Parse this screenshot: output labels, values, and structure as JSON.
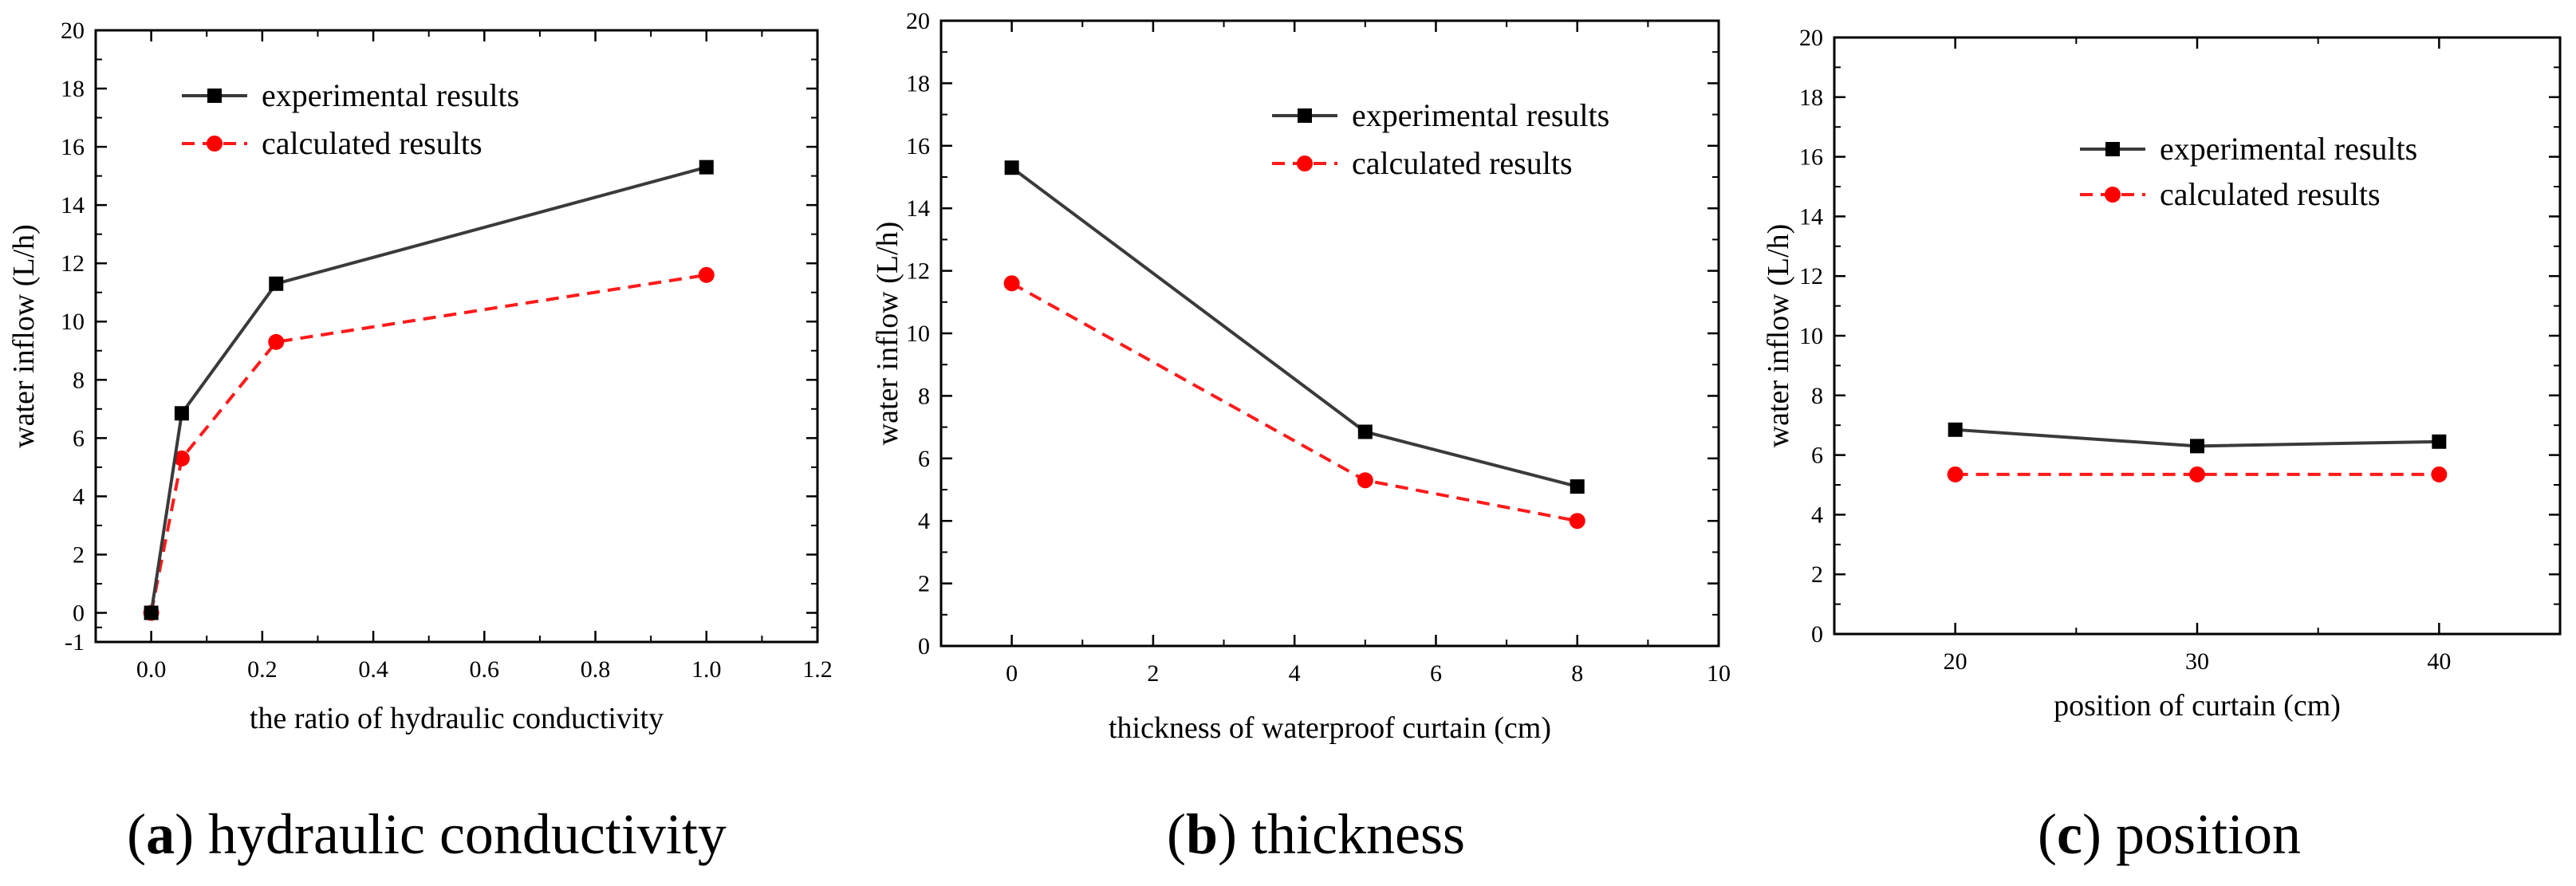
{
  "legend": {
    "experimental": "experimental results",
    "calculated": "calculated results"
  },
  "colors": {
    "experimental": "#3a3a3a",
    "calculated": "#ff1a1a",
    "marker_experimental": "#000000",
    "marker_calculated": "#ff0000"
  },
  "captions": [
    {
      "letter": "a",
      "text": "hydraulic conductivity"
    },
    {
      "letter": "b",
      "text": "thickness"
    },
    {
      "letter": "c",
      "text": "position"
    }
  ],
  "chart_data": [
    {
      "id": "a",
      "type": "line",
      "xlabel": "the ratio of hydraulic conductivity",
      "ylabel": "water inflow (L/h)",
      "xlim": [
        -0.1,
        1.2
      ],
      "ylim": [
        -1,
        20
      ],
      "xticks": [
        0.0,
        0.2,
        0.4,
        0.6,
        0.8,
        1.0,
        1.2
      ],
      "xtick_labels": [
        "0.0",
        "0.2",
        "0.4",
        "0.6",
        "0.8",
        "1.0",
        "1.2"
      ],
      "yticks": [
        -1,
        0,
        2,
        4,
        6,
        8,
        10,
        12,
        14,
        16,
        18,
        20
      ],
      "ytick_labels": [
        "-1",
        "0",
        "2",
        "4",
        "6",
        "8",
        "10",
        "12",
        "14",
        "16",
        "18",
        "20"
      ],
      "legend_position": "top-left",
      "series": [
        {
          "name": "experimental results",
          "key": "experimental",
          "x": [
            0,
            0.055,
            0.225,
            1.0
          ],
          "y": [
            0,
            6.85,
            11.3,
            15.3
          ]
        },
        {
          "name": "calculated results",
          "key": "calculated",
          "x": [
            0,
            0.055,
            0.225,
            1.0
          ],
          "y": [
            0,
            5.3,
            9.3,
            11.6
          ]
        }
      ]
    },
    {
      "id": "b",
      "type": "line",
      "xlabel": "thickness of waterproof curtain (cm)",
      "ylabel": "water inflow (L/h)",
      "xlim": [
        -1,
        10
      ],
      "ylim": [
        0,
        20
      ],
      "xticks": [
        0,
        2,
        4,
        6,
        8,
        10
      ],
      "xtick_labels": [
        "0",
        "2",
        "4",
        "6",
        "8",
        "10"
      ],
      "yticks": [
        0,
        2,
        4,
        6,
        8,
        10,
        12,
        14,
        16,
        18,
        20
      ],
      "ytick_labels": [
        "0",
        "2",
        "4",
        "6",
        "8",
        "10",
        "12",
        "14",
        "16",
        "18",
        "20"
      ],
      "legend_position": "top-right",
      "series": [
        {
          "name": "experimental results",
          "key": "experimental",
          "x": [
            0,
            5,
            8
          ],
          "y": [
            15.3,
            6.85,
            5.1
          ]
        },
        {
          "name": "calculated results",
          "key": "calculated",
          "x": [
            0,
            5,
            8
          ],
          "y": [
            11.6,
            5.3,
            4.0
          ]
        }
      ]
    },
    {
      "id": "c",
      "type": "line",
      "xlabel": "position of curtain (cm)",
      "ylabel": "water inflow (L/h)",
      "xlim": [
        15,
        45
      ],
      "ylim": [
        0,
        20
      ],
      "xticks": [
        20,
        30,
        40
      ],
      "xtick_labels": [
        "20",
        "30",
        "40"
      ],
      "yticks": [
        0,
        2,
        4,
        6,
        8,
        10,
        12,
        14,
        16,
        18,
        20
      ],
      "ytick_labels": [
        "0",
        "2",
        "4",
        "6",
        "8",
        "10",
        "12",
        "14",
        "16",
        "18",
        "20"
      ],
      "legend_position": "top-right",
      "series": [
        {
          "name": "experimental results",
          "key": "experimental",
          "x": [
            20,
            30,
            40
          ],
          "y": [
            6.85,
            6.3,
            6.45
          ]
        },
        {
          "name": "calculated results",
          "key": "calculated",
          "x": [
            20,
            30,
            40
          ],
          "y": [
            5.35,
            5.35,
            5.35
          ]
        }
      ]
    }
  ]
}
